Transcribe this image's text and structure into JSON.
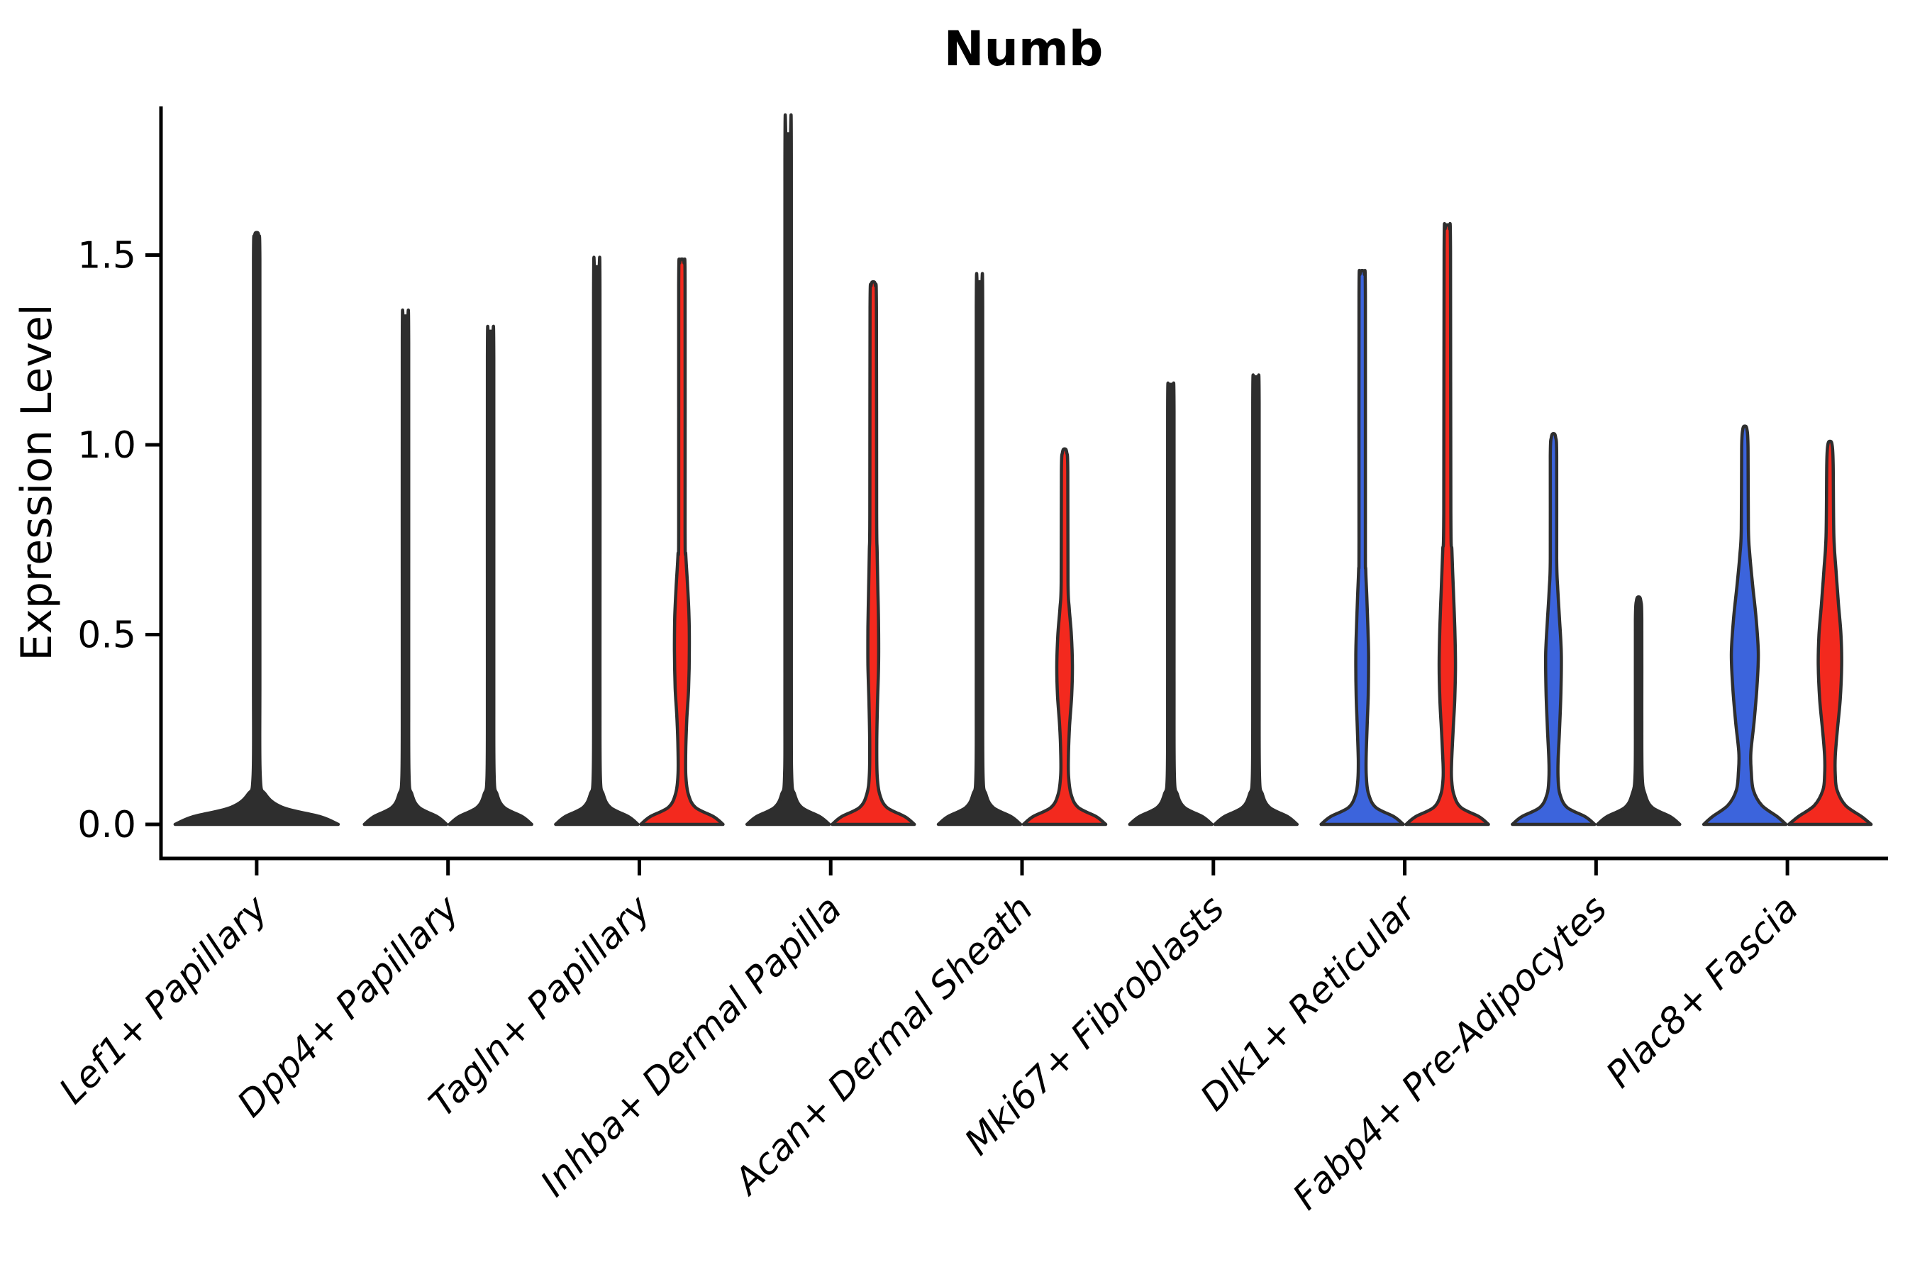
{
  "title": "Numb",
  "y_axis": {
    "label": "Expression Level",
    "ticks": [
      "0.0",
      "0.5",
      "1.0",
      "1.5"
    ],
    "tick_values": [
      0.0,
      0.5,
      1.0,
      1.5
    ]
  },
  "chart_data": {
    "type": "violin",
    "title": "Numb",
    "ylabel": "Expression Level",
    "ylim": [
      -0.06,
      1.9
    ],
    "legend_position": "none",
    "grid": false,
    "colors": {
      "blue": "#3C64DC",
      "red": "#F3291E",
      "line": "#2E2E2E",
      "outline": "#2E2E2E"
    },
    "categories": [
      "Lef1+ Papillary",
      "Dpp4+ Papillary",
      "Tagln+ Papillary",
      "Inhba+ Dermal Papilla",
      "Acan+ Dermal Sheath",
      "Mki67+ Fibroblasts",
      "Dlk1+ Reticular",
      "Fabp4+ Pre-Adipocytes",
      "Plac8+ Fascia"
    ],
    "groups": [
      {
        "category": "Lef1+ Papillary",
        "violins": [
          {
            "pos": "center",
            "fill": "line",
            "max": 1.55,
            "profile": [
              [
                0,
                115
              ],
              [
                0.02,
                90
              ],
              [
                0.045,
                36
              ],
              [
                0.08,
                12
              ],
              [
                0.13,
                5
              ],
              [
                0.4,
                4.5
              ],
              [
                1.0,
                4.5
              ],
              [
                1.49,
                4.5
              ],
              [
                1.55,
                3
              ]
            ]
          }
        ]
      },
      {
        "category": "Dpp4+ Papillary",
        "violins": [
          {
            "pos": "left",
            "fill": "line",
            "max": 1.33,
            "profile": [
              [
                0,
                58
              ],
              [
                0.02,
                45
              ],
              [
                0.045,
                19
              ],
              [
                0.08,
                9
              ],
              [
                0.13,
                5
              ],
              [
                0.4,
                4.5
              ],
              [
                1.27,
                4.5
              ],
              [
                1.33,
                3
              ]
            ]
          },
          {
            "pos": "right",
            "fill": "line",
            "max": 1.29,
            "profile": [
              [
                0,
                58
              ],
              [
                0.02,
                45
              ],
              [
                0.045,
                19
              ],
              [
                0.08,
                9
              ],
              [
                0.13,
                5
              ],
              [
                0.4,
                4.5
              ],
              [
                1.23,
                4.5
              ],
              [
                1.29,
                3
              ]
            ]
          }
        ]
      },
      {
        "category": "Tagln+ Papillary",
        "violins": [
          {
            "pos": "left",
            "fill": "line",
            "max": 1.46,
            "profile": [
              [
                0,
                58
              ],
              [
                0.02,
                45
              ],
              [
                0.045,
                19
              ],
              [
                0.08,
                9
              ],
              [
                0.13,
                5
              ],
              [
                0.4,
                4.5
              ],
              [
                1.4,
                4.5
              ],
              [
                1.46,
                3
              ]
            ]
          },
          {
            "pos": "right",
            "fill": "red",
            "max": 1.48,
            "profile": [
              [
                0,
                58
              ],
              [
                0.02,
                45
              ],
              [
                0.045,
                19
              ],
              [
                0.08,
                9
              ],
              [
                0.13,
                5.5
              ],
              [
                0.2,
                5.5
              ],
              [
                0.28,
                7
              ],
              [
                0.36,
                9.5
              ],
              [
                0.46,
                10.5
              ],
              [
                0.55,
                10
              ],
              [
                0.63,
                8
              ],
              [
                0.71,
                5.5
              ],
              [
                0.78,
                4.5
              ],
              [
                1.42,
                4.5
              ],
              [
                1.48,
                3
              ]
            ]
          }
        ]
      },
      {
        "category": "Inhba+ Dermal Papilla",
        "violins": [
          {
            "pos": "left",
            "fill": "line",
            "max": 1.81,
            "profile": [
              [
                0,
                58
              ],
              [
                0.02,
                45
              ],
              [
                0.045,
                19
              ],
              [
                0.08,
                9
              ],
              [
                0.13,
                5
              ],
              [
                0.4,
                4.5
              ],
              [
                1.75,
                4.5
              ],
              [
                1.81,
                3
              ]
            ]
          },
          {
            "pos": "right",
            "fill": "red",
            "max": 1.42,
            "profile": [
              [
                0,
                58
              ],
              [
                0.02,
                45
              ],
              [
                0.045,
                19
              ],
              [
                0.08,
                9
              ],
              [
                0.13,
                5.5
              ],
              [
                0.22,
                5
              ],
              [
                0.32,
                6
              ],
              [
                0.42,
                7.5
              ],
              [
                0.52,
                7.5
              ],
              [
                0.62,
                6.5
              ],
              [
                0.72,
                5.5
              ],
              [
                0.82,
                4.8
              ],
              [
                1.36,
                4.5
              ],
              [
                1.42,
                3
              ]
            ]
          }
        ]
      },
      {
        "category": "Acan+ Dermal Sheath",
        "violins": [
          {
            "pos": "left",
            "fill": "line",
            "max": 1.42,
            "profile": [
              [
                0,
                58
              ],
              [
                0.02,
                45
              ],
              [
                0.045,
                19
              ],
              [
                0.08,
                9
              ],
              [
                0.13,
                5
              ],
              [
                0.4,
                4.5
              ],
              [
                1.36,
                4.5
              ],
              [
                1.42,
                3
              ]
            ]
          },
          {
            "pos": "right",
            "fill": "red",
            "max": 0.98,
            "profile": [
              [
                0,
                58
              ],
              [
                0.02,
                45
              ],
              [
                0.045,
                19
              ],
              [
                0.08,
                9
              ],
              [
                0.13,
                5.5
              ],
              [
                0.19,
                5.5
              ],
              [
                0.26,
                7
              ],
              [
                0.34,
                10
              ],
              [
                0.42,
                11
              ],
              [
                0.5,
                9.5
              ],
              [
                0.57,
                6.5
              ],
              [
                0.64,
                4.8
              ],
              [
                0.93,
                4.5
              ],
              [
                0.98,
                3
              ]
            ]
          }
        ]
      },
      {
        "category": "Mki67+ Fibroblasts",
        "violins": [
          {
            "pos": "left",
            "fill": "line",
            "max": 1.15,
            "profile": [
              [
                0,
                58
              ],
              [
                0.02,
                45
              ],
              [
                0.045,
                19
              ],
              [
                0.08,
                9
              ],
              [
                0.13,
                5
              ],
              [
                0.4,
                4.5
              ],
              [
                1.09,
                4.5
              ],
              [
                1.15,
                3
              ]
            ]
          },
          {
            "pos": "right",
            "fill": "line",
            "max": 1.17,
            "profile": [
              [
                0,
                58
              ],
              [
                0.02,
                45
              ],
              [
                0.045,
                19
              ],
              [
                0.08,
                9
              ],
              [
                0.13,
                5
              ],
              [
                0.4,
                4.5
              ],
              [
                1.11,
                4.5
              ],
              [
                1.17,
                3
              ]
            ]
          }
        ]
      },
      {
        "category": "Dlk1+ Reticular",
        "violins": [
          {
            "pos": "left",
            "fill": "blue",
            "max": 1.45,
            "profile": [
              [
                0,
                58
              ],
              [
                0.02,
                45
              ],
              [
                0.045,
                19
              ],
              [
                0.08,
                9
              ],
              [
                0.12,
                6
              ],
              [
                0.17,
                5.5
              ],
              [
                0.26,
                7
              ],
              [
                0.34,
                8.5
              ],
              [
                0.44,
                9
              ],
              [
                0.52,
                8
              ],
              [
                0.6,
                6.5
              ],
              [
                0.67,
                5
              ],
              [
                0.75,
                4.5
              ],
              [
                1.39,
                4.5
              ],
              [
                1.45,
                3
              ]
            ]
          },
          {
            "pos": "right",
            "fill": "red",
            "max": 1.57,
            "profile": [
              [
                0,
                58
              ],
              [
                0.02,
                45
              ],
              [
                0.045,
                19
              ],
              [
                0.08,
                9
              ],
              [
                0.12,
                6
              ],
              [
                0.16,
                6
              ],
              [
                0.24,
                8
              ],
              [
                0.33,
                10.5
              ],
              [
                0.42,
                11.5
              ],
              [
                0.52,
                10.5
              ],
              [
                0.62,
                8.5
              ],
              [
                0.72,
                6.5
              ],
              [
                0.82,
                5
              ],
              [
                1.51,
                4.5
              ],
              [
                1.57,
                3
              ]
            ]
          }
        ]
      },
      {
        "category": "Fabp4+ Pre-Adipocytes",
        "violins": [
          {
            "pos": "left",
            "fill": "blue",
            "max": 1.02,
            "profile": [
              [
                0,
                58
              ],
              [
                0.02,
                45
              ],
              [
                0.045,
                19
              ],
              [
                0.08,
                9
              ],
              [
                0.12,
                6.5
              ],
              [
                0.17,
                6.5
              ],
              [
                0.25,
                8.5
              ],
              [
                0.35,
                10.5
              ],
              [
                0.45,
                11
              ],
              [
                0.54,
                8.5
              ],
              [
                0.62,
                6
              ],
              [
                0.7,
                4.5
              ],
              [
                0.97,
                4.5
              ],
              [
                1.02,
                3
              ]
            ]
          },
          {
            "pos": "right",
            "fill": "line",
            "max": 0.59,
            "dots": [
              0.515,
              0.545
            ],
            "profile": [
              [
                0,
                58
              ],
              [
                0.02,
                45
              ],
              [
                0.045,
                19
              ],
              [
                0.08,
                9
              ],
              [
                0.13,
                5
              ],
              [
                0.3,
                4.5
              ],
              [
                0.54,
                4.5
              ],
              [
                0.59,
                3
              ]
            ]
          }
        ]
      },
      {
        "category": "Plac8+ Fascia",
        "violins": [
          {
            "pos": "left",
            "fill": "blue",
            "max": 1.04,
            "profile": [
              [
                0,
                58
              ],
              [
                0.02,
                46
              ],
              [
                0.05,
                24
              ],
              [
                0.09,
                12
              ],
              [
                0.14,
                9
              ],
              [
                0.19,
                8.5
              ],
              [
                0.27,
                13
              ],
              [
                0.36,
                17
              ],
              [
                0.45,
                19
              ],
              [
                0.54,
                16
              ],
              [
                0.63,
                11
              ],
              [
                0.71,
                7
              ],
              [
                0.78,
                5
              ],
              [
                0.99,
                4.5
              ],
              [
                1.04,
                3
              ]
            ]
          },
          {
            "pos": "right",
            "fill": "red",
            "max": 1.0,
            "profile": [
              [
                0,
                58
              ],
              [
                0.02,
                45
              ],
              [
                0.05,
                22
              ],
              [
                0.09,
                10
              ],
              [
                0.13,
                7.5
              ],
              [
                0.18,
                7.5
              ],
              [
                0.25,
                10.5
              ],
              [
                0.33,
                14.5
              ],
              [
                0.42,
                16.5
              ],
              [
                0.5,
                15.5
              ],
              [
                0.58,
                12
              ],
              [
                0.67,
                8.5
              ],
              [
                0.76,
                5.5
              ],
              [
                0.95,
                4.5
              ],
              [
                1.0,
                3
              ]
            ]
          }
        ]
      }
    ]
  }
}
